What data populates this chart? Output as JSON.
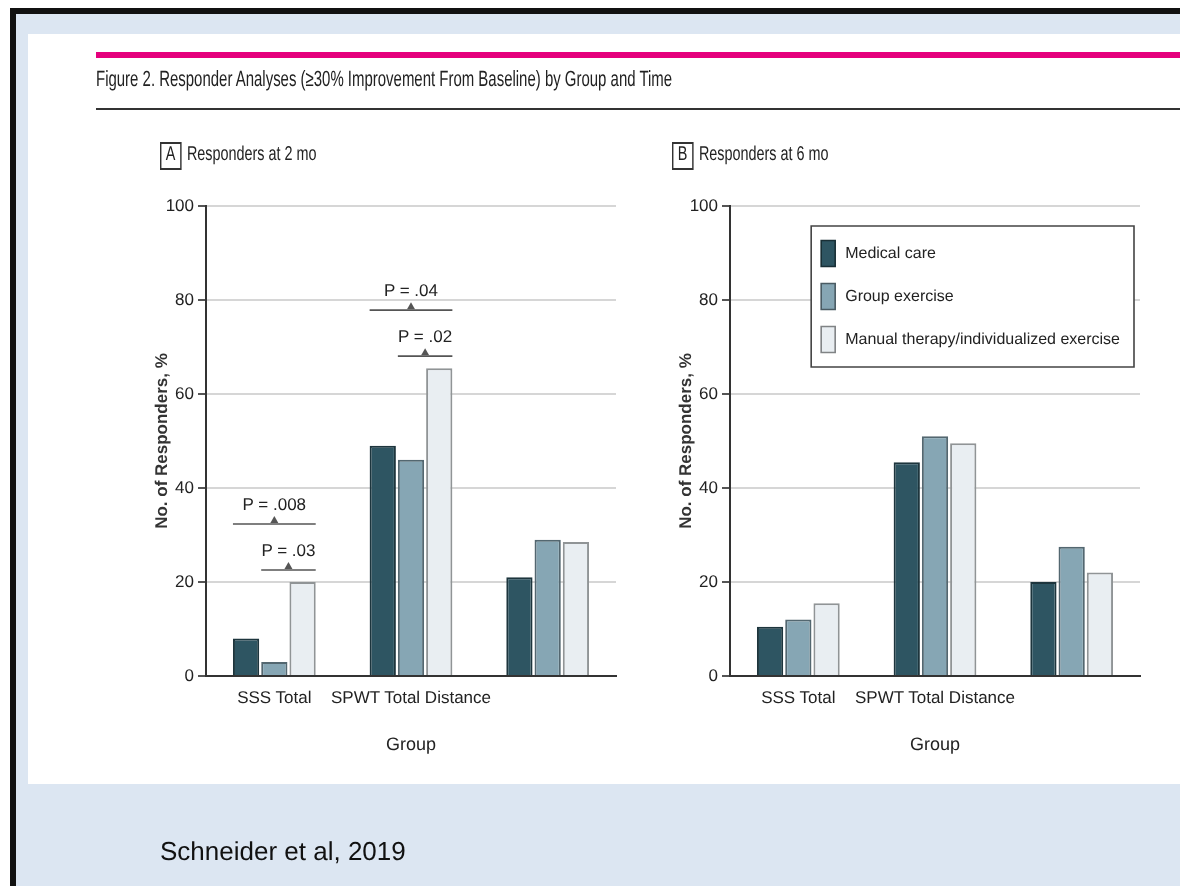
{
  "chart_data": [
    {
      "type": "bar",
      "title": "Figure 2. Responder Analyses (≥30% Improvement From Baseline) by Group and Time",
      "subtitle": "Responders at 2 mo",
      "xlabel": "Group",
      "ylabel": "No. of Responders, %",
      "categories": [
        "SSS Total",
        "SPWT Total Distance",
        null
      ],
      "series": [
        {
          "color": "#2e5562",
          "values": [
            8,
            49,
            21
          ]
        },
        {
          "color": "#86a6b4",
          "values": [
            3,
            46,
            29
          ]
        },
        {
          "color": "#e9eef2",
          "values": [
            20,
            65.5,
            28.5
          ]
        }
      ],
      "ylim": [
        0,
        100
      ],
      "yticks": [
        0,
        20,
        40,
        60,
        80,
        100
      ],
      "grid": "y",
      "annotations": [
        "A",
        "P = .008",
        "P = .03",
        "P = .04",
        "P = .02"
      ]
    },
    {
      "type": "bar",
      "subtitle": "Responders at 6 mo",
      "xlabel": "Group",
      "ylabel": "No. of Responders, %",
      "categories": [
        "SSS Total",
        "SPWT Total Distance",
        null
      ],
      "series": [
        {
          "name": "Medical care",
          "color": "#2e5562",
          "values": [
            10.5,
            45.5,
            20
          ]
        },
        {
          "name": "Group exercise",
          "color": "#86a6b4",
          "values": [
            12,
            51,
            27.5
          ]
        },
        {
          "name": "Manual therapy/individualized exercise",
          "color": "#e9eef2",
          "values": [
            15.5,
            49.5,
            22
          ]
        }
      ],
      "ylim": [
        0,
        100
      ],
      "yticks": [
        0,
        20,
        40,
        60,
        80,
        100
      ],
      "grid": "y",
      "legend": "top right",
      "annotations": [
        "B",
        "Schneider et al, 2019"
      ]
    }
  ]
}
